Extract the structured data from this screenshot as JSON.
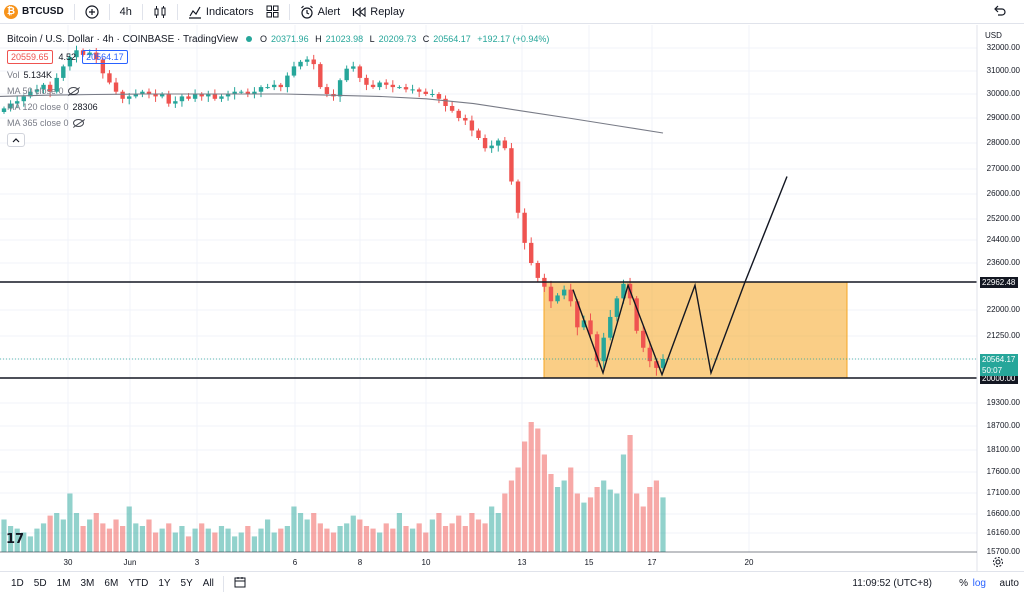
{
  "toolbar": {
    "symbol": "BTCUSD",
    "interval": "4h",
    "indicators_label": "Indicators",
    "alert_label": "Alert",
    "replay_label": "Replay"
  },
  "legend": {
    "title": "Bitcoin / U.S. Dollar · 4h · COINBASE · TradingView",
    "open_label": "O",
    "open": "20371.96",
    "high_label": "H",
    "high": "21023.98",
    "low_label": "L",
    "low": "20209.73",
    "close_label": "C",
    "close": "20564.17",
    "change": "+192.17 (+0.94%)",
    "sell_price": "20559.65",
    "spread": "4.52",
    "buy_price": "20564.17",
    "vol_label": "Vol",
    "vol_value": "5.134K",
    "ma50_label": "MA 50 close 0",
    "ma120_label": "MA 120 close 0",
    "ma120_value": "28306",
    "ma365_label": "MA 365 close 0"
  },
  "price_axis": {
    "currency": "USD",
    "labels": [
      "32000.00",
      "31000.00",
      "30000.00",
      "29000.00",
      "28000.00",
      "27000.00",
      "26000.00",
      "25200.00",
      "24400.00",
      "23600.00",
      "22962.48",
      "22000.00",
      "21250.00",
      "20564.17",
      "20000.00",
      "19300.00",
      "18700.00",
      "18100.00",
      "17600.00",
      "17100.00",
      "16600.00",
      "16160.00",
      "15700.00"
    ],
    "resistance_tag": "22962.48",
    "support_tag": "20000.00",
    "last_price_tag": "20564.17",
    "countdown": "50:07"
  },
  "time_axis": {
    "labels": [
      "30",
      "Jun",
      "3",
      "6",
      "8",
      "10",
      "13",
      "15",
      "17",
      "20"
    ]
  },
  "bottom_bar": {
    "ranges": [
      "1D",
      "5D",
      "1M",
      "3M",
      "6M",
      "YTD",
      "1Y",
      "5Y",
      "All"
    ],
    "clock": "11:09:52 (UTC+8)",
    "percent": "%",
    "log": "log",
    "auto": "auto"
  },
  "colors": {
    "up": "#26a69a",
    "down": "#ef5350",
    "zone": "#f5a623",
    "line": "#131722",
    "ma": "#787b86"
  },
  "chart_data": {
    "type": "candlestick",
    "symbol": "BTCUSD",
    "timeframe": "4h",
    "exchange": "COINBASE",
    "y_range": [
      15700,
      32400
    ],
    "resistance": 22962.48,
    "support": 20000.0,
    "candle_closes": [
      29400,
      29600,
      29700,
      29900,
      30100,
      30200,
      30400,
      30100,
      30700,
      31200,
      31600,
      31900,
      31700,
      31800,
      31500,
      30900,
      30500,
      30100,
      29800,
      29900,
      30000,
      30100,
      30000,
      29900,
      30000,
      29600,
      29700,
      29900,
      29800,
      30000,
      29900,
      30000,
      29800,
      29900,
      30000,
      30100,
      30100,
      30000,
      30100,
      30300,
      30300,
      30400,
      30300,
      30800,
      31200,
      31400,
      31500,
      31300,
      30300,
      30000,
      29900,
      30600,
      31100,
      31200,
      30700,
      30400,
      30300,
      30500,
      30400,
      30300,
      30300,
      30200,
      30200,
      30100,
      30000,
      30000,
      29800,
      29500,
      29300,
      29000,
      28900,
      28500,
      28200,
      27800,
      27900,
      28100,
      27800,
      26500,
      25400,
      24300,
      23600,
      23100,
      22800,
      22300,
      22500,
      22700,
      22300,
      21500,
      21700,
      21300,
      20500,
      21200,
      21800,
      22400,
      22900,
      22400,
      21400,
      20900,
      20500,
      20300,
      20564
    ],
    "volume_relative": [
      0.25,
      0.2,
      0.18,
      0.15,
      0.12,
      0.18,
      0.22,
      0.28,
      0.3,
      0.25,
      0.45,
      0.3,
      0.2,
      0.25,
      0.3,
      0.22,
      0.18,
      0.25,
      0.2,
      0.35,
      0.22,
      0.2,
      0.25,
      0.15,
      0.18,
      0.22,
      0.15,
      0.2,
      0.12,
      0.18,
      0.22,
      0.18,
      0.15,
      0.2,
      0.18,
      0.12,
      0.15,
      0.2,
      0.12,
      0.18,
      0.25,
      0.15,
      0.18,
      0.2,
      0.35,
      0.3,
      0.25,
      0.3,
      0.22,
      0.18,
      0.15,
      0.2,
      0.22,
      0.28,
      0.25,
      0.2,
      0.18,
      0.15,
      0.22,
      0.18,
      0.3,
      0.2,
      0.18,
      0.22,
      0.15,
      0.25,
      0.3,
      0.2,
      0.22,
      0.28,
      0.2,
      0.3,
      0.25,
      0.22,
      0.35,
      0.3,
      0.45,
      0.55,
      0.65,
      0.85,
      1.0,
      0.95,
      0.75,
      0.6,
      0.5,
      0.55,
      0.65,
      0.45,
      0.38,
      0.42,
      0.5,
      0.55,
      0.48,
      0.45,
      0.75,
      0.9,
      0.45,
      0.35,
      0.5,
      0.55,
      0.42
    ],
    "ma_approx": [
      29900,
      29950,
      29980,
      30000,
      30000,
      30000,
      30000,
      29950,
      29900,
      29800,
      29600,
      29300,
      29000,
      28700,
      28400
    ]
  }
}
